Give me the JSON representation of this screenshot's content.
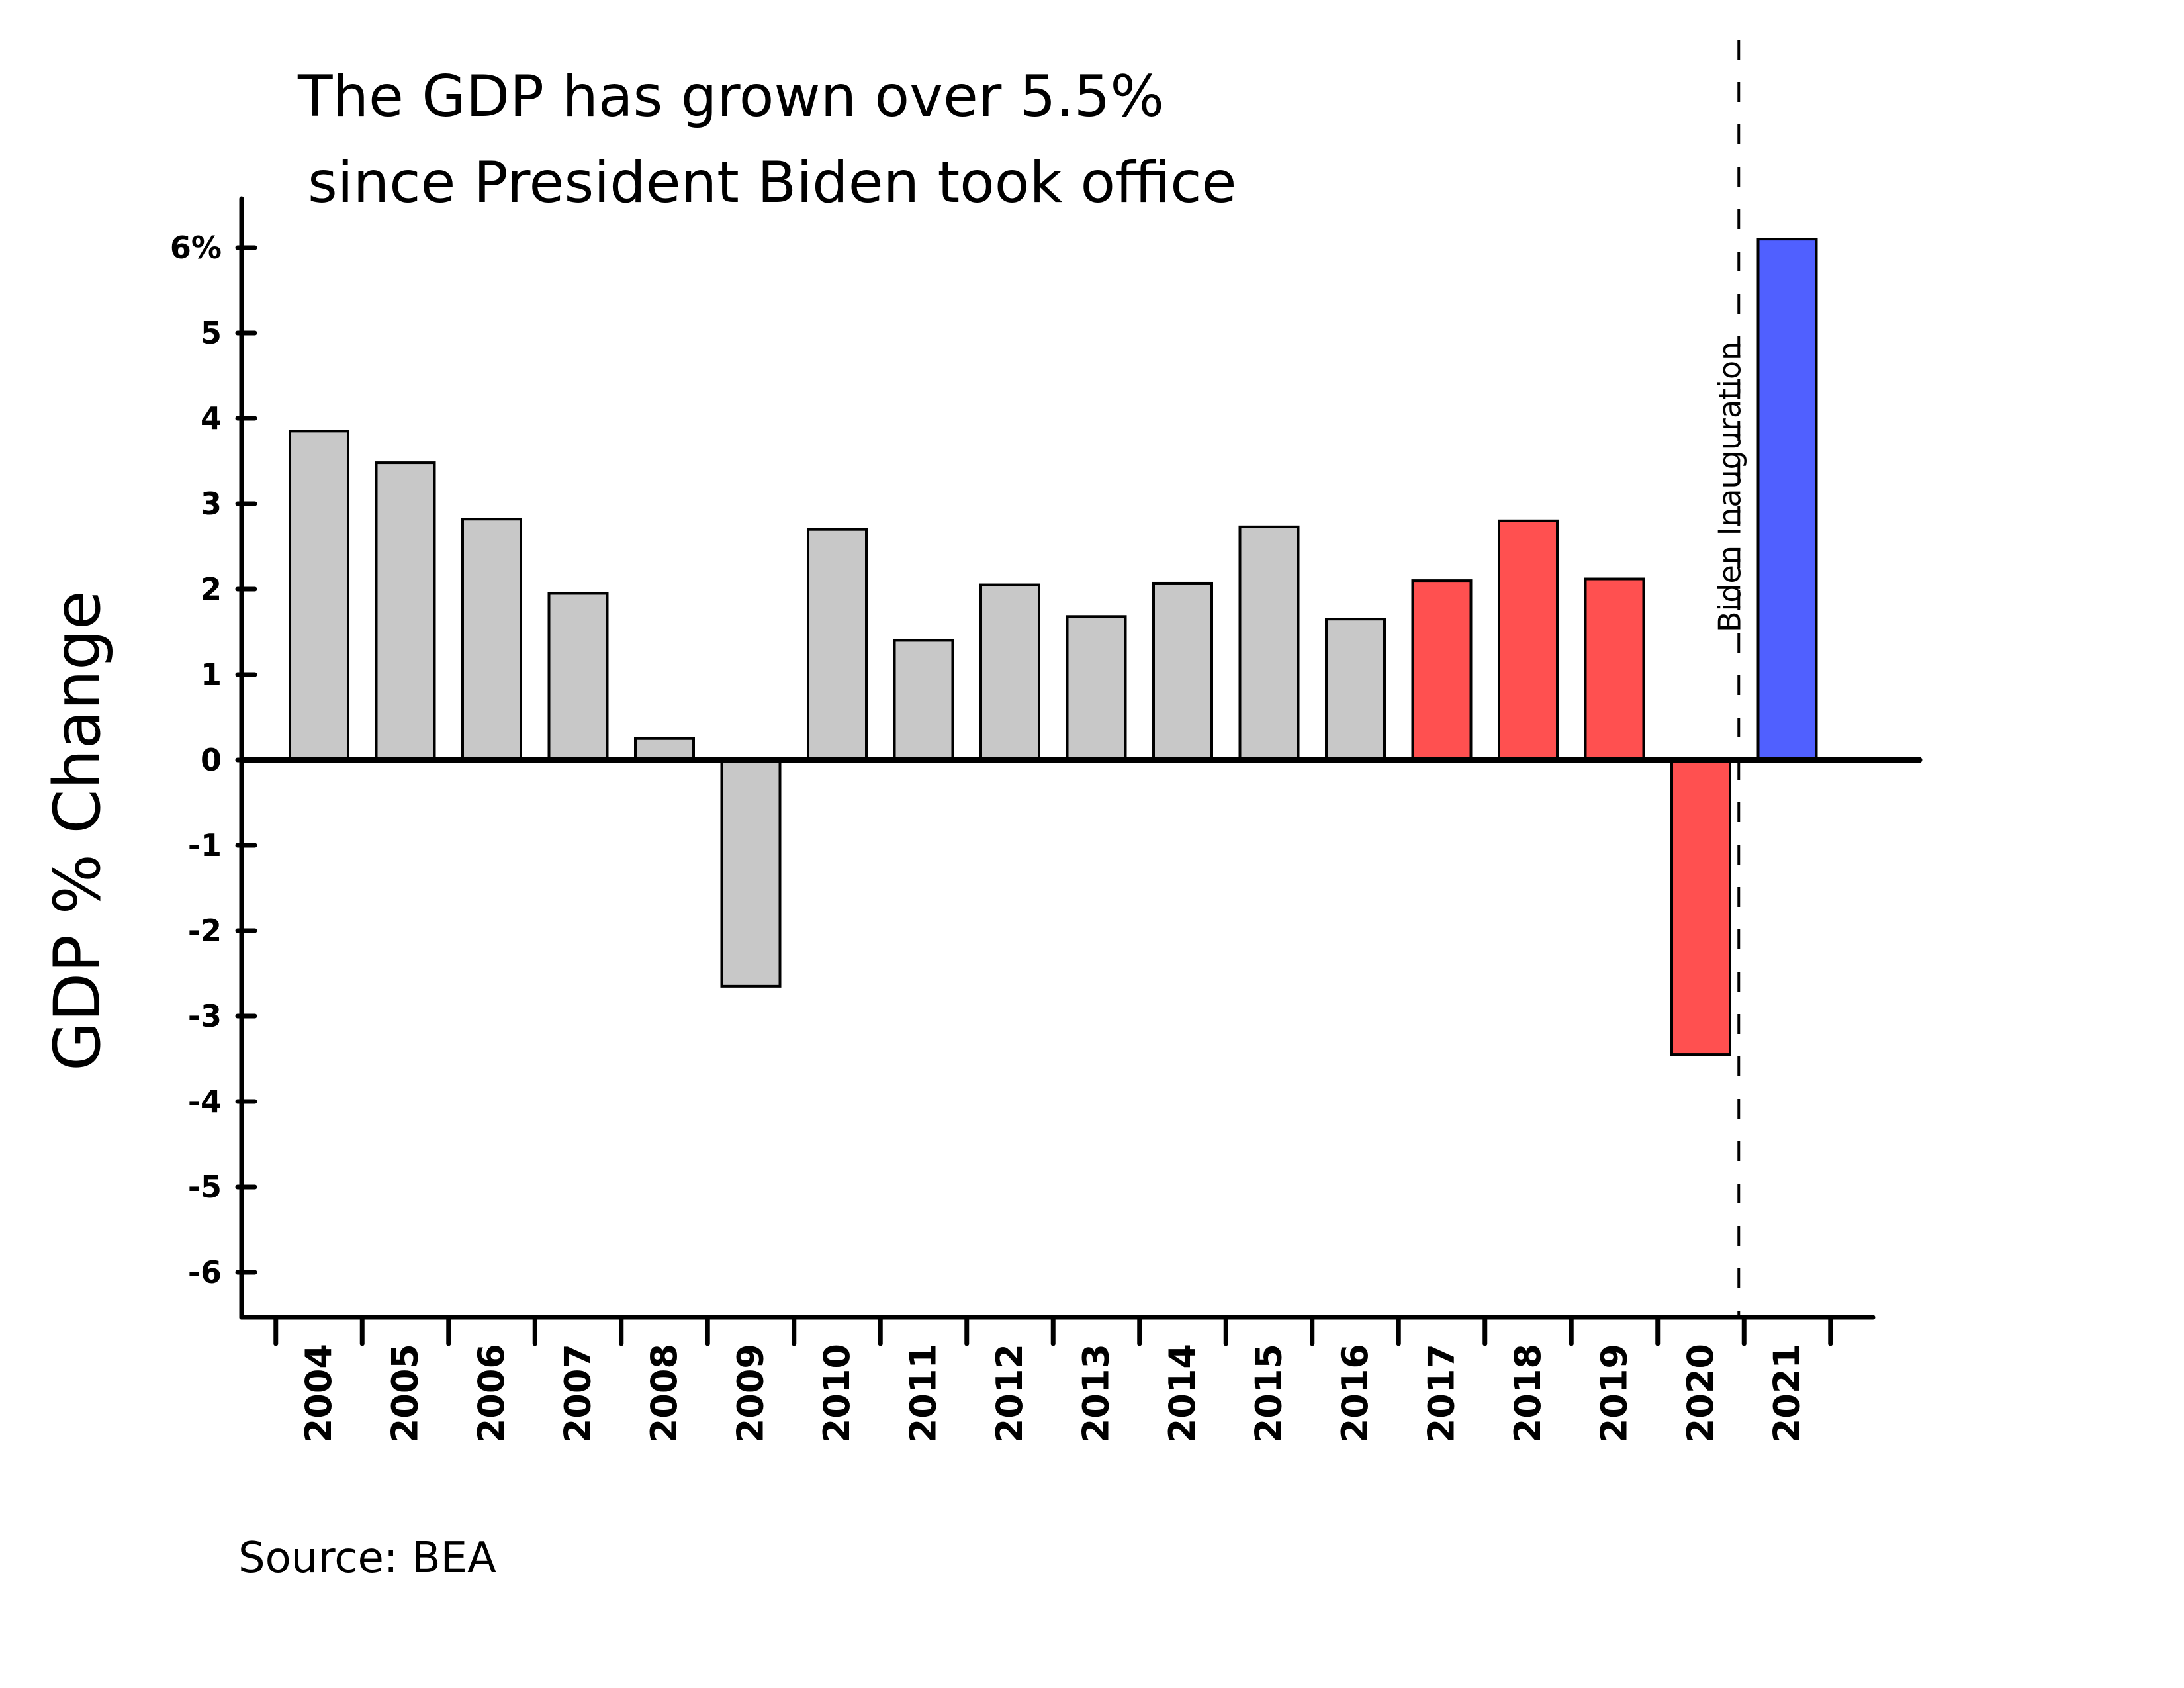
{
  "chart_data": {
    "type": "bar",
    "title": "The GDP has grown over 5.5%",
    "subtitle": "since President Biden took office",
    "ylabel": "GDP % Change",
    "xlabel": "",
    "source": "Source: BEA",
    "ylim": [
      -6,
      6.3
    ],
    "yticks": [
      6,
      5,
      4,
      3,
      2,
      1,
      0,
      -1,
      -2,
      -3,
      -4,
      -5,
      -6
    ],
    "ytick_labels": [
      "6%",
      "5",
      "4",
      "3",
      "2",
      "1",
      "0",
      "-1",
      "-2",
      "-3",
      "-4",
      "-5",
      "-6"
    ],
    "categories": [
      "2004",
      "2005",
      "2006",
      "2007",
      "2008",
      "2009",
      "2010",
      "2011",
      "2012",
      "2013",
      "2014",
      "2015",
      "2016",
      "2017",
      "2018",
      "2019",
      "2020",
      "2021"
    ],
    "values": [
      3.85,
      3.48,
      2.82,
      1.95,
      0.25,
      -2.65,
      2.7,
      1.4,
      2.05,
      1.68,
      2.07,
      2.73,
      1.65,
      2.1,
      2.8,
      2.12,
      -3.45,
      6.1
    ],
    "colors": [
      "#c8c8c8",
      "#c8c8c8",
      "#c8c8c8",
      "#c8c8c8",
      "#c8c8c8",
      "#c8c8c8",
      "#c8c8c8",
      "#c8c8c8",
      "#c8c8c8",
      "#c8c8c8",
      "#c8c8c8",
      "#c8c8c8",
      "#c8c8c8",
      "#ff5050",
      "#ff5050",
      "#ff5050",
      "#ff5050",
      "#5060ff"
    ],
    "annotation": {
      "label": "Biden Inauguration",
      "between": [
        "2020",
        "2021"
      ],
      "style": "dashed vertical line"
    },
    "grid": false,
    "legend": "none"
  }
}
